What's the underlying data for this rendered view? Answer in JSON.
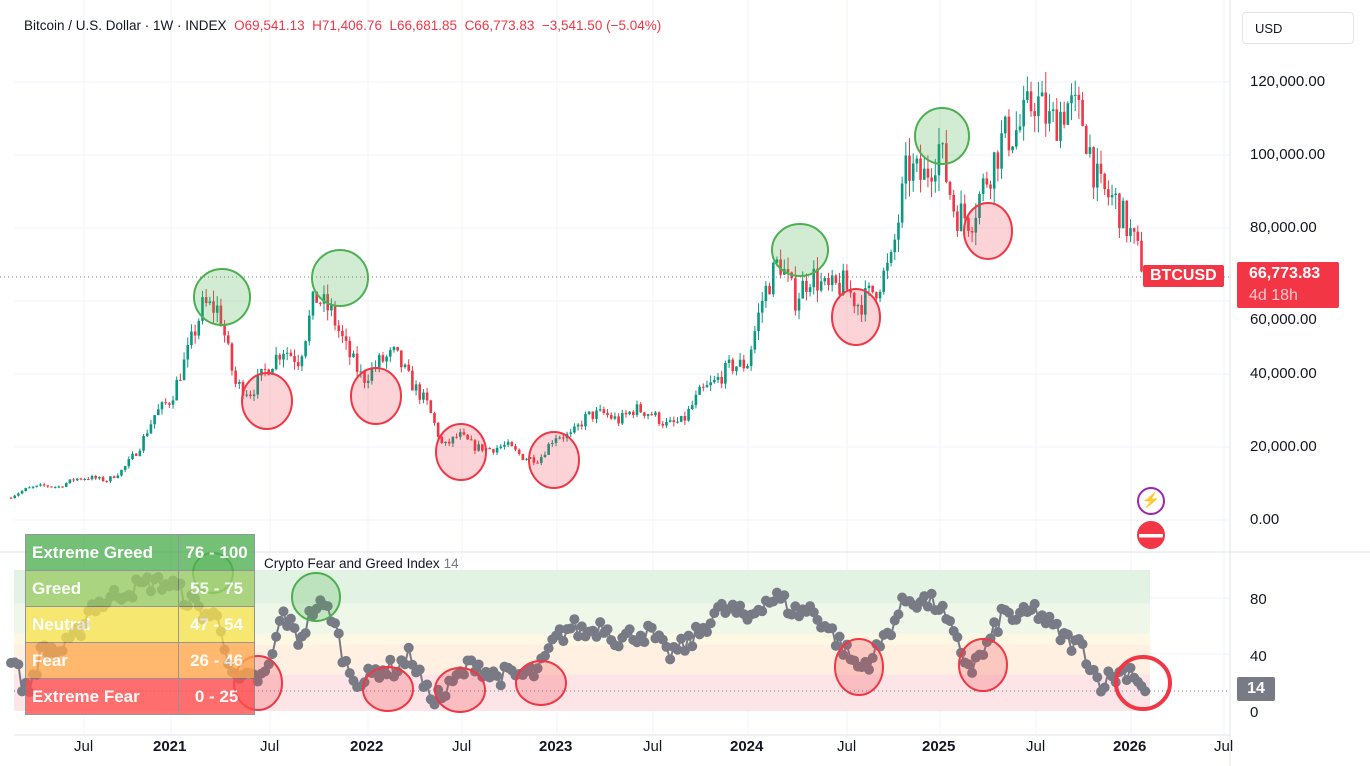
{
  "header": {
    "symbol": "Bitcoin / U.S. Dollar · 1W · INDEX",
    "open": "O69,541.13",
    "high": "H71,406.76",
    "low": "L66,681.85",
    "close": "C66,773.83",
    "change": "−3,541.50 (−5.04%)"
  },
  "currency_button": "USD",
  "price_axis": [
    "120,000.00",
    "100,000.00",
    "80,000.00",
    "60,000.00",
    "40,000.00",
    "20,000.00",
    "0.00"
  ],
  "price_axis_values": [
    120000,
    100000,
    80000,
    60000,
    40000,
    20000,
    0
  ],
  "price_label": {
    "symbol": "BTCUSD",
    "price": "66,773.83",
    "countdown": "4d 18h"
  },
  "time_axis": [
    {
      "label": "Jul",
      "bold": false
    },
    {
      "label": "2021",
      "bold": true
    },
    {
      "label": "Jul",
      "bold": false
    },
    {
      "label": "2022",
      "bold": true
    },
    {
      "label": "Jul",
      "bold": false
    },
    {
      "label": "2023",
      "bold": true
    },
    {
      "label": "Jul",
      "bold": false
    },
    {
      "label": "2024",
      "bold": true
    },
    {
      "label": "Jul",
      "bold": false
    },
    {
      "label": "2025",
      "bold": true
    },
    {
      "label": "Jul",
      "bold": false
    },
    {
      "label": "2026",
      "bold": true
    },
    {
      "label": "Jul",
      "bold": false
    }
  ],
  "indicator": {
    "name": "Crypto Fear and Greed Index",
    "value": "14",
    "axis": [
      "80",
      "40",
      "0"
    ]
  },
  "zones_table": [
    {
      "label": "Extreme Greed",
      "range": "76 - 100",
      "color": "#4caf50"
    },
    {
      "label": "Greed",
      "range": "55 - 75",
      "color": "#9ccc65"
    },
    {
      "label": "Neutral",
      "range": "47 - 54",
      "color": "#f7e34f"
    },
    {
      "label": "Fear",
      "range": "26 - 46",
      "color": "#ffa94d"
    },
    {
      "label": "Extreme Fear",
      "range": "0 - 25",
      "color": "#ff4d4d"
    }
  ],
  "colors": {
    "up": "#089981",
    "down": "#f23645",
    "greed_circle": "#4caf50",
    "fear_circle": "#f23645",
    "index_dots": "#787b86"
  },
  "icons": [
    "lightning-icon",
    "us-flag-calendar-icon"
  ],
  "chart_data": {
    "type": "candlestick",
    "start": "2020-03",
    "monthly_close_approx": [
      6400,
      8600,
      9400,
      9100,
      11300,
      11600,
      10800,
      13800,
      19700,
      29000,
      33100,
      45200,
      58800,
      57700,
      37300,
      35000,
      41500,
      47100,
      43800,
      61300,
      57000,
      46300,
      38500,
      43200,
      45500,
      37700,
      31800,
      19900,
      23300,
      20000,
      19400,
      20500,
      17200,
      16500,
      23100,
      23100,
      28500,
      29200,
      27200,
      30500,
      29200,
      26000,
      27000,
      34500,
      37700,
      42300,
      42600,
      61200,
      71300,
      60600,
      67500,
      62700,
      64600,
      59000,
      63300,
      70200,
      96400,
      93400,
      102400,
      84400,
      82500,
      94200,
      104600,
      107100,
      115700,
      108200,
      114000,
      109500,
      90400,
      87500,
      78000,
      66773.83
    ],
    "fear_greed_monthly_approx": [
      40,
      12,
      45,
      42,
      50,
      75,
      78,
      85,
      88,
      92,
      90,
      80,
      70,
      65,
      20,
      22,
      25,
      70,
      50,
      75,
      70,
      30,
      20,
      30,
      30,
      40,
      12,
      10,
      25,
      35,
      25,
      25,
      25,
      28,
      50,
      60,
      55,
      62,
      50,
      55,
      55,
      40,
      45,
      55,
      70,
      72,
      65,
      78,
      80,
      70,
      72,
      60,
      45,
      30,
      40,
      60,
      80,
      78,
      75,
      50,
      30,
      45,
      70,
      65,
      72,
      60,
      50,
      45,
      20,
      25,
      30,
      14
    ]
  }
}
